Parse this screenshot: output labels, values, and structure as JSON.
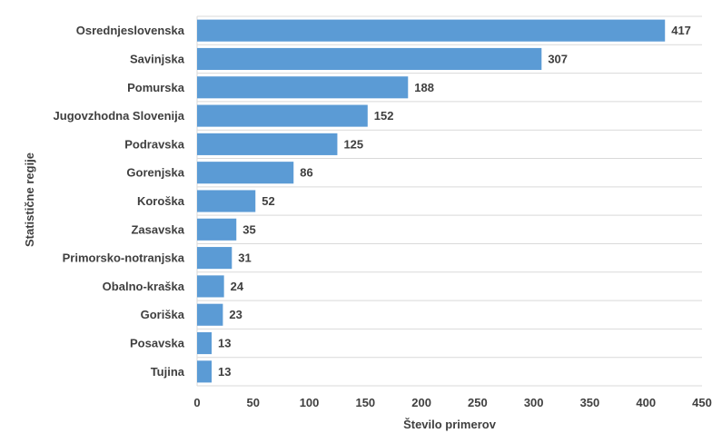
{
  "chart_data": {
    "type": "bar",
    "orientation": "horizontal",
    "categories": [
      "Osrednjeslovenska",
      "Savinjska",
      "Pomurska",
      "Jugovzhodna Slovenija",
      "Podravska",
      "Gorenjska",
      "Koroška",
      "Zasavska",
      "Primorsko-notranjska",
      "Obalno-kraška",
      "Goriška",
      "Posavska",
      "Tujina"
    ],
    "values": [
      417,
      307,
      188,
      152,
      125,
      86,
      52,
      35,
      31,
      24,
      23,
      13,
      13
    ],
    "xlabel": "Število primerov",
    "ylabel": "Statistične regije",
    "xlim": [
      0,
      450
    ],
    "xticks": [
      0,
      50,
      100,
      150,
      200,
      250,
      300,
      350,
      400,
      450
    ],
    "grid": true,
    "legend": "none",
    "bar_color": "#5b9bd5",
    "grid_color": "#d9d9d9"
  }
}
